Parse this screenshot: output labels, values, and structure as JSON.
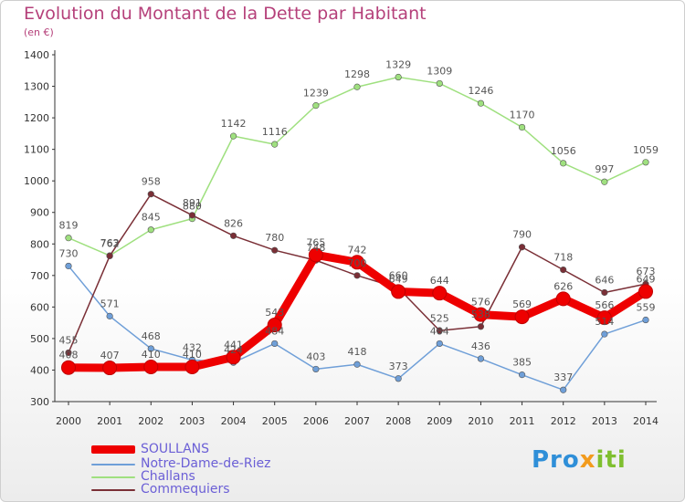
{
  "chart_data": {
    "type": "line",
    "title": "Evolution du Montant de la Dette par Habitant",
    "subtitle": "(en €)",
    "x": [
      "2000",
      "2001",
      "2002",
      "2003",
      "2004",
      "2005",
      "2006",
      "2007",
      "2008",
      "2009",
      "2010",
      "2011",
      "2012",
      "2013",
      "2014"
    ],
    "ylim": [
      300,
      1400
    ],
    "yticks": [
      300,
      400,
      500,
      600,
      700,
      800,
      900,
      1000,
      1100,
      1200,
      1300,
      1400
    ],
    "grid": false,
    "legend_position": "bottom-left",
    "series": [
      {
        "name": "SOULLANS",
        "color": "#ee0000",
        "values": [
          408,
          407,
          410,
          410,
          441,
          543,
          765,
          742,
          649,
          644,
          576,
          569,
          626,
          566,
          649
        ]
      },
      {
        "name": "Notre-Dame-de-Riez",
        "color": "#6f9fd8",
        "values": [
          730,
          571,
          468,
          432,
          424,
          484,
          403,
          418,
          373,
          484,
          436,
          385,
          337,
          514,
          559
        ]
      },
      {
        "name": "Challans",
        "color": "#9fe07f",
        "values": [
          819,
          763,
          845,
          880,
          1142,
          1116,
          1239,
          1298,
          1329,
          1309,
          1246,
          1170,
          1056,
          997,
          1059
        ]
      },
      {
        "name": "Commequiers",
        "color": "#7a2f36",
        "values": [
          455,
          762,
          958,
          891,
          826,
          780,
          748,
          700,
          660,
          525,
          538,
          790,
          718,
          646,
          673
        ]
      }
    ]
  },
  "logo_text": [
    "Pro",
    "x",
    "iti"
  ]
}
